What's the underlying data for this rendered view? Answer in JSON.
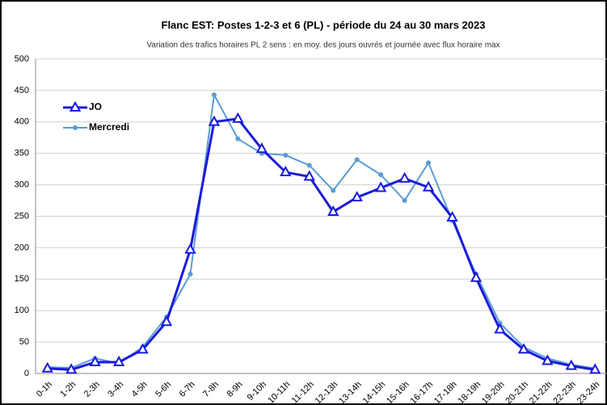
{
  "chart_data": {
    "type": "line",
    "title": "Flanc EST: Postes 1-2-3 et 6 (PL) - période du 24 au 30 mars 2023",
    "subtitle": "Variation des trafics horaires PL 2 sens : en moy. des jours ouvrés et journée avec flux horaire max",
    "categories": [
      "0-1h",
      "1-2h",
      "2-3h",
      "3-4h",
      "4-5h",
      "5-6h",
      "6-7h",
      "7-8h",
      "8-9h",
      "9-10h",
      "10-11h",
      "11-12h",
      "12-13h",
      "13-14h",
      "14-15h",
      "15-16h",
      "16-17h",
      "17-18h",
      "18-19h",
      "19-20h",
      "20-21h",
      "21-22h",
      "22-23h",
      "23-24h"
    ],
    "series": [
      {
        "name": "JO",
        "color": "#1a1adb",
        "values": [
          8,
          6,
          18,
          18,
          38,
          82,
          197,
          400,
          405,
          357,
          320,
          313,
          257,
          280,
          295,
          310,
          296,
          248,
          152,
          70,
          38,
          20,
          12,
          6
        ]
      },
      {
        "name": "Mercredi",
        "color": "#5b9bd5",
        "values": [
          10,
          9,
          24,
          16,
          42,
          90,
          158,
          443,
          373,
          350,
          347,
          331,
          291,
          340,
          316,
          275,
          335,
          243,
          158,
          80,
          42,
          24,
          14,
          8
        ]
      }
    ],
    "ylim": [
      0,
      500
    ],
    "yticks": [
      0,
      50,
      100,
      150,
      200,
      250,
      300,
      350,
      400,
      450,
      500
    ],
    "grid": true,
    "legend": "upper left"
  }
}
